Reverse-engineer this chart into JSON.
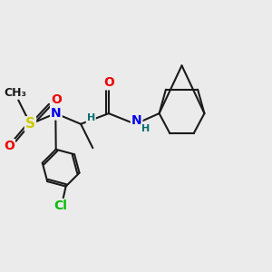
{
  "bg_color": "#ebebeb",
  "bond_color": "#1a1a1a",
  "bond_width": 1.5,
  "atom_colors": {
    "C": "#1a1a1a",
    "N": "#0000ee",
    "O": "#ee0000",
    "S": "#cccc00",
    "Cl": "#00bb00",
    "H": "#007070"
  },
  "font_size": 9.5,
  "fig_size": [
    3.0,
    3.0
  ],
  "dpi": 100,
  "xlim": [
    0,
    10
  ],
  "ylim": [
    0,
    10
  ]
}
